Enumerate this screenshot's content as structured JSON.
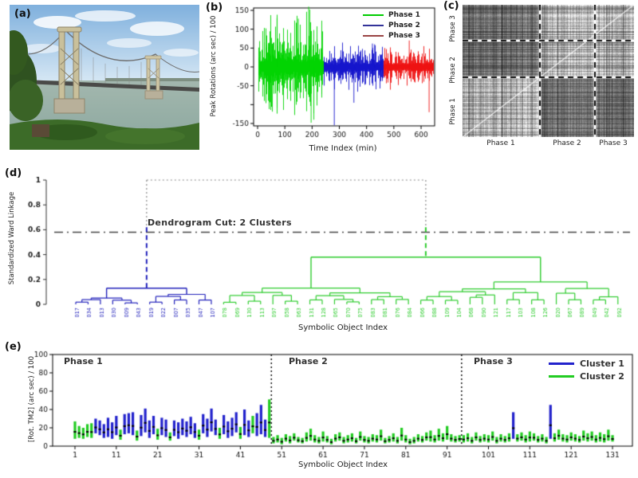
{
  "figure": {
    "panel_labels": {
      "a": "(a)",
      "b": "(b)",
      "c": "(c)",
      "d": "(d)",
      "e": "(e)"
    },
    "colors": {
      "phase1_green": "#00d400",
      "phase2_blue": "#1414cc",
      "phase3_red": "#ee1111",
      "cluster1_blue": "#2222bb",
      "cluster2_green": "#2ecc2e",
      "cut_gray": "#444444"
    }
  },
  "chart_data": [
    {
      "panel": "b",
      "type": "line",
      "xlabel": "Time Index (min)",
      "ylabel": "Peak Rotations (arc sec) / 100",
      "xticks": [
        0,
        100,
        200,
        300,
        400,
        500,
        600
      ],
      "ytick_values": [
        150,
        100,
        50,
        0,
        -50,
        -100,
        -150
      ],
      "ytick_labels": [
        "150",
        "100",
        "50",
        "0",
        "-50",
        "",
        "-150"
      ],
      "xlim": [
        0,
        650
      ],
      "ylim": [
        -165,
        165
      ],
      "grid": false,
      "legend_position": "top-right",
      "series": [
        {
          "name": "Phase 1",
          "color": "#00d400",
          "t_start": 0,
          "t_end": 240,
          "typ_amp": 55,
          "max_amp": 160
        },
        {
          "name": "Phase 2",
          "color": "#1414cc",
          "t_start": 240,
          "t_end": 460,
          "typ_amp": 24,
          "max_amp": 155
        },
        {
          "name": "Phase 3",
          "color": "#ee1111",
          "t_start": 460,
          "t_end": 645,
          "typ_amp": 21,
          "max_amp": 120
        }
      ],
      "spikes": [
        {
          "t": 70,
          "v": 130
        },
        {
          "t": 148,
          "v": 128
        },
        {
          "t": 186,
          "v": 160
        },
        {
          "t": 190,
          "v": 152
        },
        {
          "t": 195,
          "v": -148
        },
        {
          "t": 205,
          "v": -140
        },
        {
          "t": 280,
          "v": -155
        },
        {
          "t": 352,
          "v": -95
        },
        {
          "t": 420,
          "v": 62
        },
        {
          "t": 428,
          "v": 60
        },
        {
          "t": 555,
          "v": 70
        },
        {
          "t": 628,
          "v": -120
        }
      ],
      "legend": [
        {
          "label": "Phase 1",
          "color": "#00cc00"
        },
        {
          "label": "Phase 2",
          "color": "#333399"
        },
        {
          "label": "Phase 3",
          "color": "#994444"
        }
      ]
    },
    {
      "panel": "c",
      "type": "heatmap",
      "col_labels": [
        "Phase 1",
        "Phase 2",
        "Phase 3"
      ],
      "row_labels_top_to_bottom": [
        "Phase 3",
        "Phase 2",
        "Phase 1"
      ],
      "col_fracs": [
        0.45,
        0.32,
        0.23
      ],
      "row_fracs_top_to_bottom": [
        0.27,
        0.28,
        0.45
      ],
      "block_lightness_rows_top_to_bottom": [
        [
          0.42,
          0.68,
          0.66
        ],
        [
          0.4,
          0.64,
          0.62
        ],
        [
          0.68,
          0.42,
          0.4
        ]
      ],
      "divider_style": "black-dashed",
      "diagonal": "light"
    },
    {
      "panel": "d",
      "type": "dendrogram",
      "ylabel": "Standardized Ward Linkage",
      "xlabel": "Symbolic Object Index",
      "ytick_values": [
        0,
        0.2,
        0.4,
        0.6,
        0.8,
        1
      ],
      "ytick_labels": [
        "0",
        "0.2",
        "0.4",
        "0.6",
        "0.8",
        "1"
      ],
      "cut_line": {
        "y": 0.58,
        "label": "Dendrogram Cut: 2 Clusters"
      },
      "root_height": 1.0,
      "clusters": [
        {
          "name": "Cluster 1",
          "color": "#2222bb",
          "root_height": 0.13,
          "groups": [
            {
              "height": 0.05,
              "leaves": [
                "017",
                "034",
                "013",
                "030",
                "009",
                "043"
              ]
            },
            {
              "height": 0.08,
              "leaves": [
                "019",
                "022",
                "007",
                "035",
                "047",
                "107"
              ]
            }
          ]
        },
        {
          "name": "Cluster 2",
          "color": "#2ecc2e",
          "root_height": 0.38,
          "groups": [
            {
              "height": 0.13,
              "leaves": [
                "078",
                "069",
                "130",
                "113",
                "097",
                "058",
                "063",
                "131",
                "128",
                "065",
                "070",
                "075",
                "083",
                "081",
                "076",
                "084"
              ]
            },
            {
              "height": 0.18,
              "leaves": [
                "066",
                "088",
                "109",
                "104",
                "068",
                "090",
                "121",
                "117",
                "103",
                "108",
                "126",
                "020",
                "067",
                "089",
                "049",
                "042",
                "092"
              ]
            }
          ]
        }
      ]
    },
    {
      "panel": "e",
      "type": "bar-range",
      "ylabel": "[Rot. TM2] (arc sec) / 100",
      "xlabel": "Symbolic Object Index",
      "ytick_values": [
        0,
        20,
        40,
        60,
        80,
        100
      ],
      "xticks": [
        1,
        11,
        21,
        31,
        41,
        51,
        61,
        71,
        81,
        91,
        101,
        111,
        121,
        131
      ],
      "ylim": [
        0,
        100
      ],
      "phase_dividers": [
        48.5,
        94.5
      ],
      "phase_labels": [
        {
          "text": "Phase 1",
          "x": 3
        },
        {
          "text": "Phase 2",
          "x": 50
        },
        {
          "text": "Phase 3",
          "x": 96
        }
      ],
      "legend": [
        {
          "label": "Cluster 1",
          "color": "#2222cc"
        },
        {
          "label": "Cluster 2",
          "color": "#22cc22"
        }
      ],
      "bars": {
        "cluster": [
          2,
          2,
          2,
          2,
          2,
          1,
          1,
          1,
          1,
          1,
          1,
          2,
          1,
          1,
          1,
          2,
          1,
          1,
          1,
          1,
          2,
          1,
          1,
          2,
          1,
          1,
          1,
          1,
          1,
          1,
          2,
          1,
          1,
          1,
          1,
          2,
          1,
          1,
          1,
          1,
          2,
          1,
          1,
          2,
          1,
          1,
          1,
          2,
          2,
          2,
          2,
          2,
          2,
          2,
          2,
          2,
          2,
          2,
          2,
          2,
          2,
          2,
          2,
          2,
          2,
          2,
          2,
          2,
          2,
          2,
          2,
          2,
          2,
          2,
          2,
          2,
          2,
          2,
          2,
          2,
          2,
          2,
          2,
          2,
          2,
          2,
          2,
          2,
          2,
          2,
          2,
          2,
          2,
          2,
          2,
          2,
          2,
          2,
          2,
          2,
          2,
          2,
          2,
          2,
          2,
          2,
          1,
          2,
          2,
          2,
          2,
          2,
          2,
          2,
          2,
          1,
          2,
          2,
          2,
          2,
          2,
          2,
          2,
          2,
          2,
          2,
          2,
          2,
          2,
          2,
          2
        ],
        "lo": [
          8,
          9,
          8,
          10,
          9,
          14,
          12,
          9,
          10,
          8,
          12,
          7,
          13,
          14,
          12,
          6,
          11,
          15,
          9,
          13,
          7,
          12,
          10,
          6,
          11,
          8,
          12,
          10,
          13,
          9,
          7,
          14,
          10,
          16,
          12,
          8,
          13,
          9,
          11,
          15,
          8,
          12,
          10,
          14,
          11,
          13,
          10,
          9,
          3,
          4,
          2,
          5,
          3,
          6,
          4,
          3,
          5,
          6,
          4,
          3,
          5,
          4,
          2,
          5,
          6,
          3,
          4,
          5,
          3,
          6,
          4,
          3,
          5,
          4,
          6,
          3,
          4,
          5,
          3,
          6,
          4,
          2,
          3,
          5,
          4,
          6,
          5,
          4,
          6,
          5,
          7,
          5,
          4,
          5,
          4,
          5,
          3,
          6,
          4,
          5,
          4,
          6,
          3,
          5,
          4,
          5,
          8,
          5,
          6,
          4,
          5,
          6,
          4,
          5,
          3,
          8,
          5,
          7,
          5,
          4,
          6,
          5,
          4,
          6,
          5,
          6,
          4,
          5,
          4,
          6,
          5
        ],
        "hi": [
          27,
          22,
          20,
          24,
          25,
          30,
          28,
          24,
          31,
          26,
          33,
          18,
          35,
          36,
          37,
          17,
          34,
          41,
          28,
          33,
          19,
          31,
          29,
          15,
          28,
          26,
          30,
          27,
          32,
          25,
          18,
          35,
          30,
          41,
          29,
          20,
          34,
          27,
          31,
          37,
          21,
          40,
          28,
          33,
          36,
          45,
          29,
          51,
          10,
          12,
          9,
          13,
          11,
          14,
          10,
          9,
          15,
          19,
          12,
          10,
          16,
          11,
          8,
          13,
          15,
          10,
          12,
          14,
          9,
          16,
          11,
          10,
          13,
          12,
          18,
          9,
          11,
          14,
          10,
          20,
          12,
          8,
          10,
          13,
          11,
          15,
          17,
          12,
          19,
          14,
          22,
          13,
          11,
          12,
          12,
          14,
          10,
          15,
          11,
          13,
          12,
          16,
          10,
          13,
          11,
          14,
          37,
          13,
          15,
          12,
          16,
          14,
          11,
          13,
          10,
          45,
          14,
          18,
          13,
          12,
          15,
          13,
          11,
          17,
          14,
          16,
          12,
          15,
          13,
          18,
          12
        ]
      }
    }
  ]
}
